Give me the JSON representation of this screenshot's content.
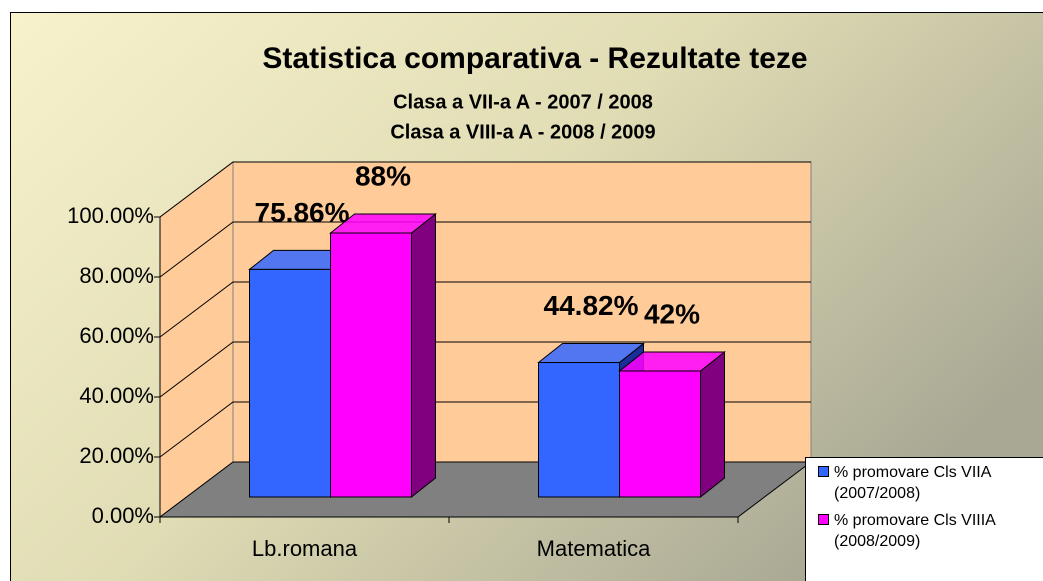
{
  "chart_data": {
    "type": "bar3d",
    "title": "Statistica comparativa  - Rezultate teze",
    "subtitle": [
      "Clasa a VII-a A  -  2007 / 2008",
      "Clasa a VIII-a A -   2008 / 2009"
    ],
    "categories": [
      "Lb.romana",
      "Matematica"
    ],
    "series": [
      {
        "name": "% promovare Cls VIIA (2007/2008)",
        "color": "#3366ff",
        "side_color": "#1a2f99",
        "values": [
          75.86,
          44.82
        ],
        "value_labels": [
          "75.86%",
          "44.82%"
        ]
      },
      {
        "name": "% promovare Cls VIIIA (2008/2009)",
        "color": "#ff00ff",
        "side_color": "#800080",
        "values": [
          88,
          42
        ],
        "value_labels": [
          "88%",
          "42%"
        ]
      }
    ],
    "ylim": [
      0,
      100
    ],
    "yticks": [
      {
        "value": 0,
        "label": "0.00%"
      },
      {
        "value": 20,
        "label": "20.00%"
      },
      {
        "value": 40,
        "label": "40.00%"
      },
      {
        "value": 60,
        "label": "60.00%"
      },
      {
        "value": 80,
        "label": "80.00%"
      },
      {
        "value": 100,
        "label": "100.00%"
      }
    ],
    "grid": true,
    "wall_color": "#ffcc99",
    "floor_color": "#808080",
    "legend": "bottom-right"
  }
}
